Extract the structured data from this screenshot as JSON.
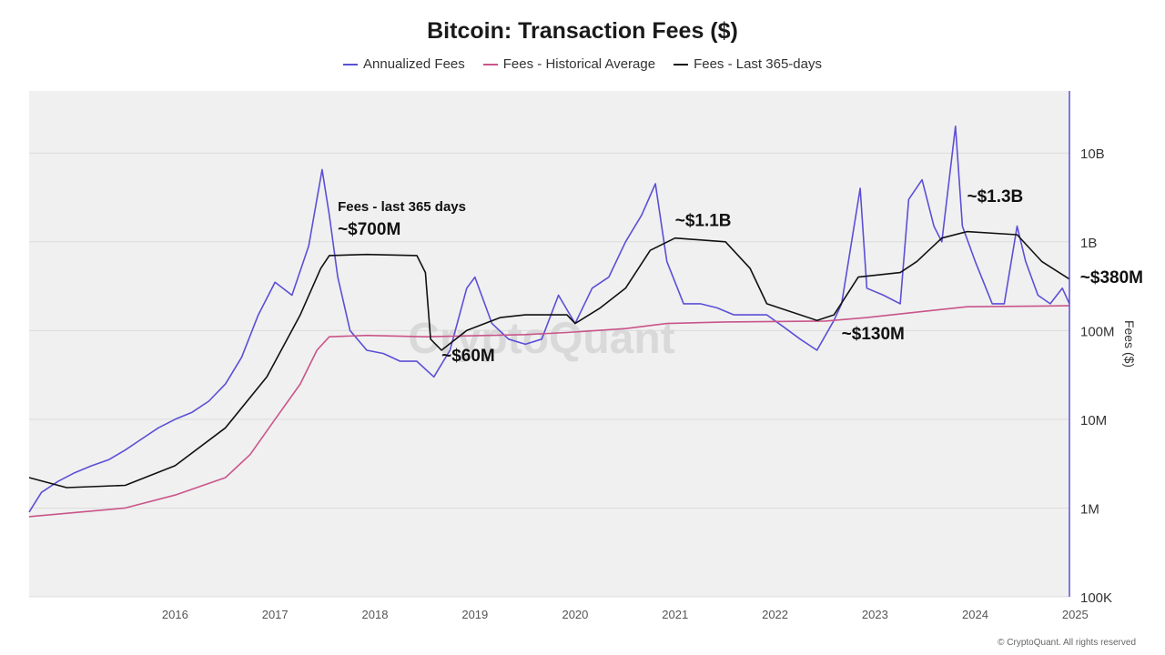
{
  "chart_data": {
    "type": "line",
    "title": "Bitcoin: Transaction Fees ($)",
    "ylabel": "Fees ($)",
    "xlabel": "",
    "y_scale": "log",
    "ylim": [
      100000,
      50000000000
    ],
    "xlim": [
      "2015-01-15",
      "2025-06-10"
    ],
    "grid": true,
    "legend_position": "top",
    "x_ticks": [
      "2016",
      "2017",
      "2018",
      "2019",
      "2020",
      "2021",
      "2022",
      "2023",
      "2024",
      "2025"
    ],
    "y_ticks": [
      {
        "value": 100000,
        "label": "100K"
      },
      {
        "value": 1000000,
        "label": "1M"
      },
      {
        "value": 10000000,
        "label": "10M"
      },
      {
        "value": 100000000,
        "label": "100M"
      },
      {
        "value": 1000000000,
        "label": "1B"
      },
      {
        "value": 10000000000,
        "label": "10B"
      }
    ],
    "watermark": "CryptoQuant",
    "series": [
      {
        "name": "Annualized Fees",
        "color": "#5b4fd6",
        "points": [
          [
            "2015-01-15",
            900000
          ],
          [
            "2015-03-01",
            1500000
          ],
          [
            "2015-05-01",
            2000000
          ],
          [
            "2015-07-01",
            2500000
          ],
          [
            "2015-09-01",
            3000000
          ],
          [
            "2015-11-01",
            3500000
          ],
          [
            "2016-01-01",
            4500000
          ],
          [
            "2016-03-01",
            6000000
          ],
          [
            "2016-05-01",
            8000000
          ],
          [
            "2016-07-01",
            10000000
          ],
          [
            "2016-09-01",
            12000000
          ],
          [
            "2016-11-01",
            16000000
          ],
          [
            "2017-01-01",
            25000000
          ],
          [
            "2017-03-01",
            50000000
          ],
          [
            "2017-05-01",
            150000000
          ],
          [
            "2017-07-01",
            350000000
          ],
          [
            "2017-09-01",
            250000000
          ],
          [
            "2017-11-01",
            900000000
          ],
          [
            "2017-12-20",
            6500000000
          ],
          [
            "2018-01-15",
            2000000000
          ],
          [
            "2018-02-15",
            400000000
          ],
          [
            "2018-04-01",
            100000000
          ],
          [
            "2018-06-01",
            60000000
          ],
          [
            "2018-08-01",
            55000000
          ],
          [
            "2018-10-01",
            45000000
          ],
          [
            "2018-12-01",
            45000000
          ],
          [
            "2019-02-01",
            30000000
          ],
          [
            "2019-04-01",
            60000000
          ],
          [
            "2019-06-01",
            300000000
          ],
          [
            "2019-07-01",
            400000000
          ],
          [
            "2019-09-01",
            120000000
          ],
          [
            "2019-11-01",
            80000000
          ],
          [
            "2020-01-01",
            70000000
          ],
          [
            "2020-03-01",
            80000000
          ],
          [
            "2020-05-01",
            250000000
          ],
          [
            "2020-07-01",
            120000000
          ],
          [
            "2020-09-01",
            300000000
          ],
          [
            "2020-11-01",
            400000000
          ],
          [
            "2021-01-01",
            1000000000
          ],
          [
            "2021-03-01",
            2000000000
          ],
          [
            "2021-04-20",
            4500000000
          ],
          [
            "2021-06-01",
            600000000
          ],
          [
            "2021-08-01",
            200000000
          ],
          [
            "2021-10-01",
            200000000
          ],
          [
            "2021-12-01",
            180000000
          ],
          [
            "2022-02-01",
            150000000
          ],
          [
            "2022-04-01",
            150000000
          ],
          [
            "2022-06-01",
            150000000
          ],
          [
            "2022-08-01",
            110000000
          ],
          [
            "2022-10-01",
            80000000
          ],
          [
            "2022-12-01",
            60000000
          ],
          [
            "2023-02-01",
            130000000
          ],
          [
            "2023-03-01",
            200000000
          ],
          [
            "2023-05-08",
            4000000000
          ],
          [
            "2023-06-01",
            300000000
          ],
          [
            "2023-08-01",
            250000000
          ],
          [
            "2023-10-01",
            200000000
          ],
          [
            "2023-11-01",
            3000000000
          ],
          [
            "2023-12-20",
            5000000000
          ],
          [
            "2024-02-01",
            1500000000
          ],
          [
            "2024-03-01",
            1000000000
          ],
          [
            "2024-04-20",
            20000000000
          ],
          [
            "2024-05-15",
            1500000000
          ],
          [
            "2024-07-01",
            600000000
          ],
          [
            "2024-09-01",
            200000000
          ],
          [
            "2024-10-15",
            200000000
          ],
          [
            "2024-12-01",
            1500000000
          ],
          [
            "2025-01-01",
            600000000
          ],
          [
            "2025-02-15",
            250000000
          ],
          [
            "2025-04-01",
            200000000
          ],
          [
            "2025-05-15",
            300000000
          ],
          [
            "2025-06-10",
            200000000
          ]
        ]
      },
      {
        "name": "Fees - Historical Average",
        "color": "#c9558a",
        "points": [
          [
            "2015-01-15",
            800000
          ],
          [
            "2016-01-01",
            1000000
          ],
          [
            "2016-07-01",
            1400000
          ],
          [
            "2017-01-01",
            2200000
          ],
          [
            "2017-04-01",
            4000000
          ],
          [
            "2017-07-01",
            10000000
          ],
          [
            "2017-10-01",
            25000000
          ],
          [
            "2017-12-01",
            60000000
          ],
          [
            "2018-01-15",
            85000000
          ],
          [
            "2018-06-01",
            88000000
          ],
          [
            "2019-01-01",
            85000000
          ],
          [
            "2020-01-01",
            90000000
          ],
          [
            "2020-06-01",
            95000000
          ],
          [
            "2021-01-01",
            105000000
          ],
          [
            "2021-06-01",
            120000000
          ],
          [
            "2022-01-01",
            125000000
          ],
          [
            "2023-01-01",
            128000000
          ],
          [
            "2023-06-01",
            140000000
          ],
          [
            "2024-01-01",
            165000000
          ],
          [
            "2024-06-01",
            185000000
          ],
          [
            "2025-06-10",
            190000000
          ]
        ]
      },
      {
        "name": "Fees - Last 365-days",
        "color": "#111111",
        "points": [
          [
            "2015-01-15",
            2200000
          ],
          [
            "2015-06-01",
            1700000
          ],
          [
            "2016-01-01",
            1800000
          ],
          [
            "2016-07-01",
            3000000
          ],
          [
            "2017-01-01",
            8000000
          ],
          [
            "2017-06-01",
            30000000
          ],
          [
            "2017-10-01",
            150000000
          ],
          [
            "2017-12-15",
            500000000
          ],
          [
            "2018-01-15",
            700000000
          ],
          [
            "2018-06-01",
            720000000
          ],
          [
            "2018-12-01",
            700000000
          ],
          [
            "2019-01-01",
            450000000
          ],
          [
            "2019-01-20",
            80000000
          ],
          [
            "2019-03-01",
            60000000
          ],
          [
            "2019-06-01",
            100000000
          ],
          [
            "2019-10-01",
            140000000
          ],
          [
            "2020-01-01",
            150000000
          ],
          [
            "2020-06-01",
            150000000
          ],
          [
            "2020-07-01",
            120000000
          ],
          [
            "2020-10-01",
            180000000
          ],
          [
            "2021-01-01",
            300000000
          ],
          [
            "2021-04-01",
            800000000
          ],
          [
            "2021-07-01",
            1100000000
          ],
          [
            "2022-01-01",
            1000000000
          ],
          [
            "2022-04-01",
            500000000
          ],
          [
            "2022-06-01",
            200000000
          ],
          [
            "2022-12-01",
            130000000
          ],
          [
            "2023-02-01",
            150000000
          ],
          [
            "2023-05-01",
            400000000
          ],
          [
            "2023-10-01",
            450000000
          ],
          [
            "2023-12-01",
            600000000
          ],
          [
            "2024-03-01",
            1100000000
          ],
          [
            "2024-06-01",
            1300000000
          ],
          [
            "2024-12-01",
            1200000000
          ],
          [
            "2025-03-01",
            600000000
          ],
          [
            "2025-06-10",
            380000000
          ]
        ]
      }
    ],
    "annotations": [
      {
        "date": "2018-02-15",
        "value": 1200000000,
        "text": "~$700M",
        "subtext": "Fees - last 365 days"
      },
      {
        "date": "2019-03-01",
        "value": 45000000,
        "text": "~$60M"
      },
      {
        "date": "2021-07-01",
        "value": 1500000000,
        "text": "~$1.1B"
      },
      {
        "date": "2023-03-01",
        "value": 80000000,
        "text": "~$130M"
      },
      {
        "date": "2024-06-01",
        "value": 2800000000,
        "text": "~$1.3B"
      },
      {
        "date": "2025-06-10",
        "value": 380000000,
        "text": "~$380M"
      }
    ]
  },
  "footer": {
    "copyright": "© CryptoQuant. All rights reserved"
  }
}
